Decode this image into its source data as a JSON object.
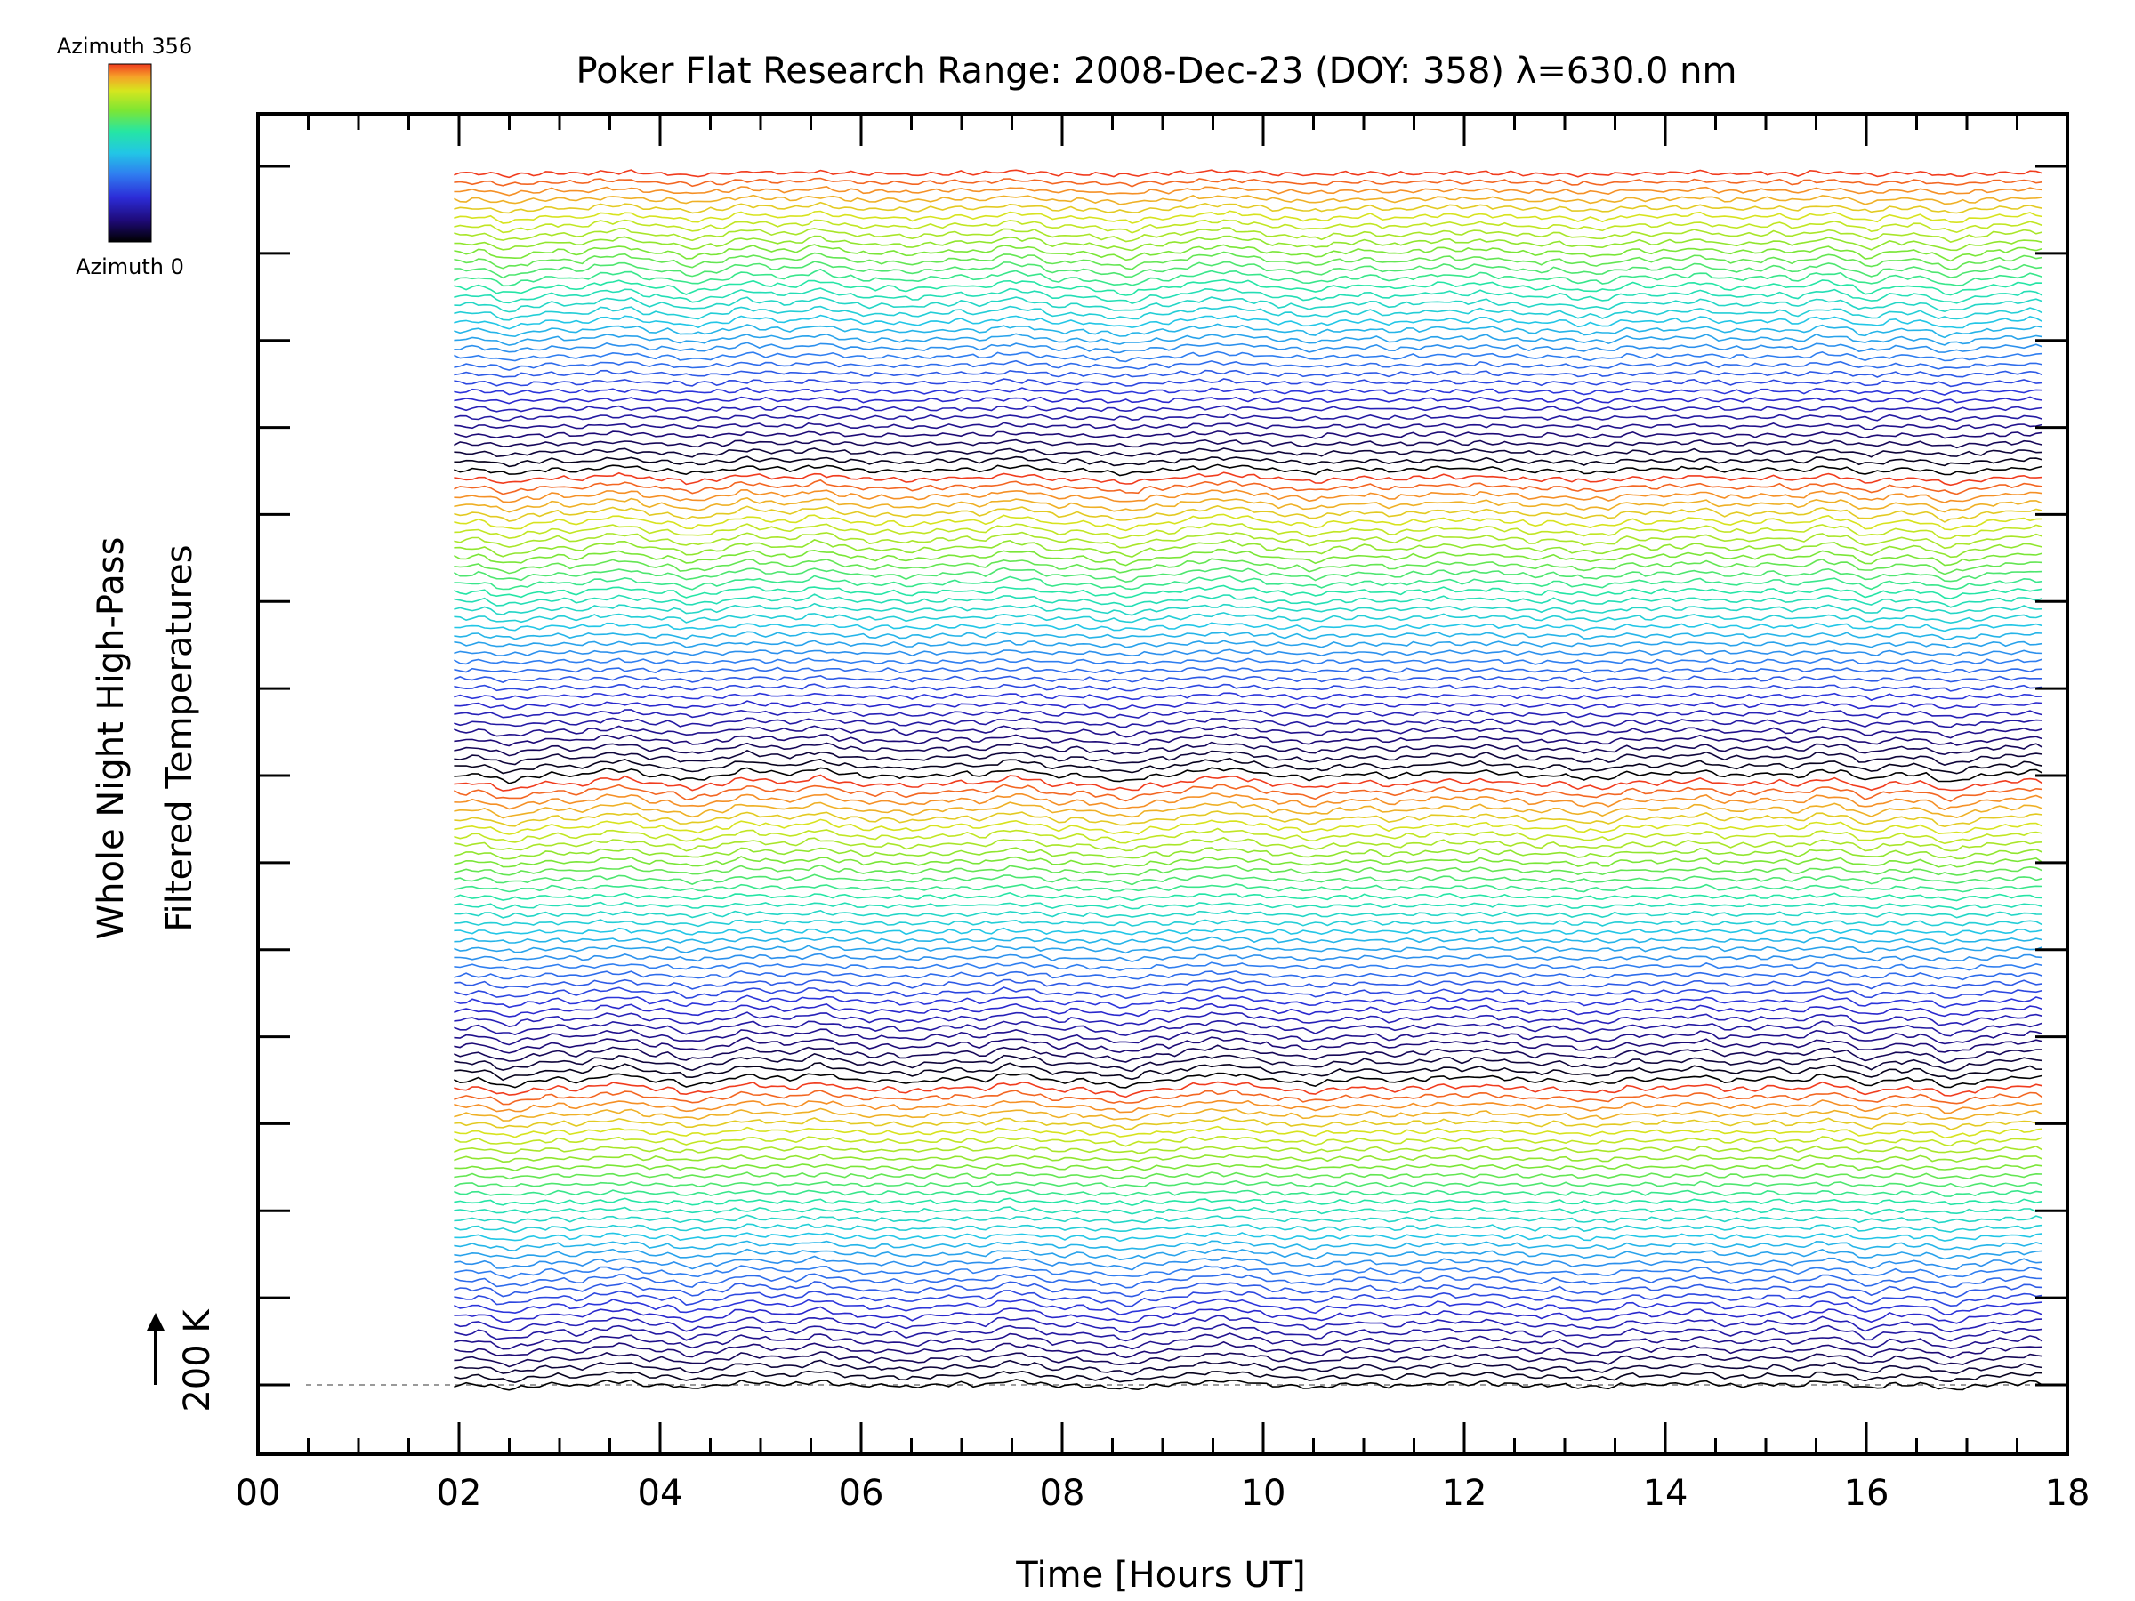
{
  "chart_data": {
    "type": "line",
    "title": "Poker Flat Research Range: 2008-Dec-23 (DOY: 358) λ=630.0 nm",
    "xlabel": "Time [Hours UT]",
    "ylabel_line1": "Whole Night High-Pass",
    "ylabel_line2": "Filtered Temperatures",
    "scale_bar_label": "200 K",
    "colorbar": {
      "top_label": "Azimuth 356",
      "bottom_label": "Azimuth 0",
      "colors": [
        "#000000",
        "#1e0a78",
        "#2c2cd8",
        "#2f7df0",
        "#22c6e6",
        "#25e6a4",
        "#7de633",
        "#d6e61e",
        "#f6a028",
        "#f03c1e"
      ]
    },
    "x_ticks": [
      "00",
      "02",
      "04",
      "06",
      "08",
      "10",
      "12",
      "14",
      "16",
      "18"
    ],
    "xlim": [
      0,
      18
    ],
    "y_major_ticks": 15,
    "grid": false,
    "legend": "none",
    "series_count": 140,
    "series_spacing_K": 40,
    "data_start_hour": 1.95,
    "data_end_hour": 17.75,
    "baseline_K": 0
  }
}
